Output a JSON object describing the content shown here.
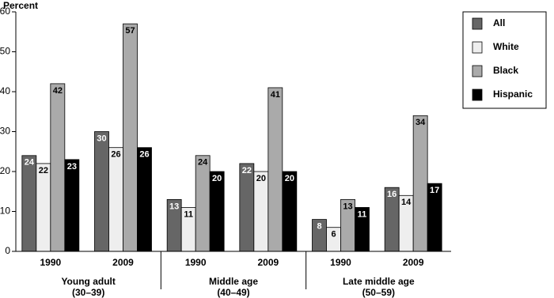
{
  "chart_data": {
    "type": "bar",
    "y_axis_label": "Percent",
    "categories": [
      "1990",
      "2009",
      "1990",
      "2009",
      "1990",
      "2009"
    ],
    "groups": [
      {
        "name": "Young adult",
        "range": "(30–39)"
      },
      {
        "name": "Middle age",
        "range": "(40–49)"
      },
      {
        "name": "Late middle age",
        "range": "(50–59)"
      }
    ],
    "series": [
      {
        "name": "All",
        "color": "#666666",
        "values": [
          24,
          30,
          13,
          22,
          8,
          16
        ]
      },
      {
        "name": "White",
        "color": "#eeeeee",
        "values": [
          22,
          26,
          11,
          20,
          6,
          14
        ]
      },
      {
        "name": "Black",
        "color": "#aaaaaa",
        "values": [
          42,
          57,
          24,
          41,
          13,
          34
        ]
      },
      {
        "name": "Hispanic",
        "color": "#000000",
        "values": [
          23,
          26,
          20,
          20,
          11,
          17
        ]
      }
    ],
    "ylim": [
      0,
      60
    ],
    "yticks": [
      0,
      10,
      20,
      30,
      40,
      50,
      60
    ],
    "legend": "right"
  }
}
